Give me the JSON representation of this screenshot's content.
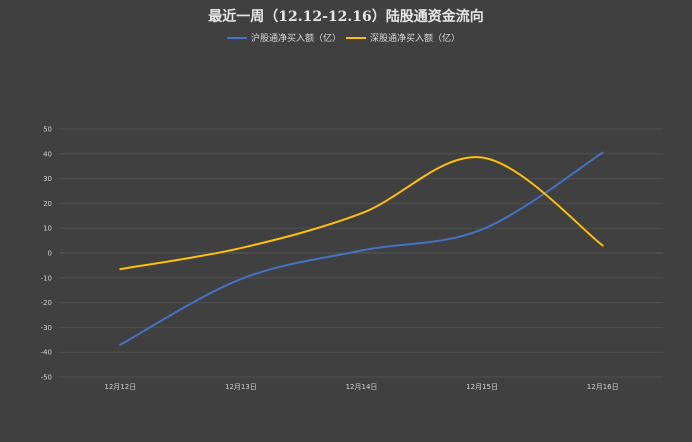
{
  "chart_data": {
    "type": "line",
    "title": "最近一周（12.12-12.16）陆股通资金流向",
    "categories": [
      "12月12日",
      "12月13日",
      "12月14日",
      "12月15日",
      "12月16日"
    ],
    "series": [
      {
        "name": "沪股通净买入额（亿）",
        "color": "#4472c4",
        "values": [
          -37,
          -10.5,
          1,
          9.5,
          40.5
        ]
      },
      {
        "name": "深股通净买入额（亿）",
        "color": "#ffc000",
        "values": [
          -6.5,
          2,
          16,
          38.5,
          3
        ]
      }
    ],
    "ylim": [
      -50,
      50
    ],
    "yticks": [
      50,
      40,
      30,
      20,
      10,
      0,
      -10,
      -20,
      -30,
      -40,
      -50
    ],
    "grid": true,
    "smooth": true,
    "legend": "top-center",
    "background": "#404040"
  }
}
